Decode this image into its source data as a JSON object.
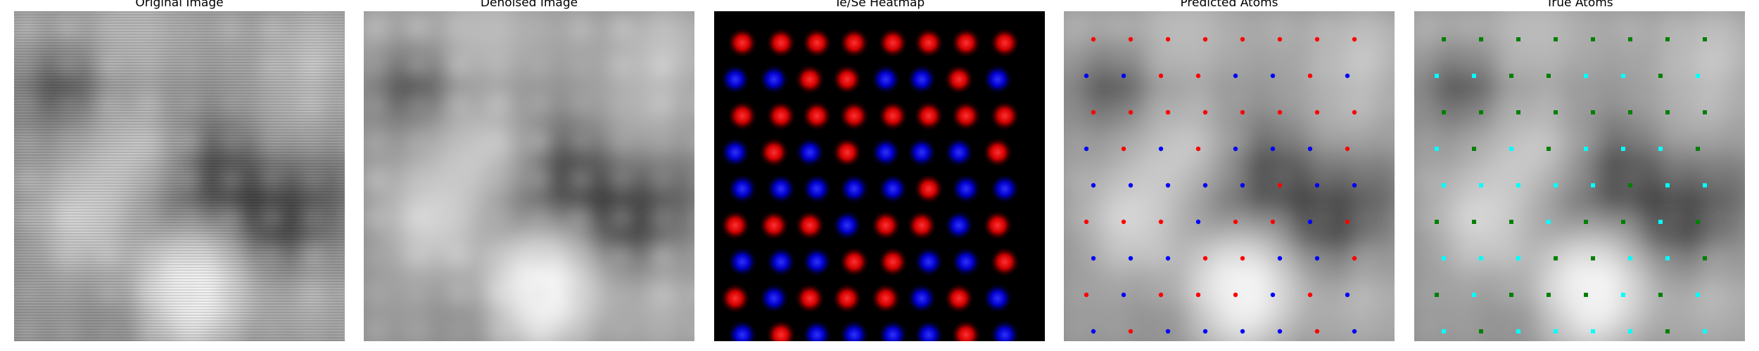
{
  "figure": {
    "panels": [
      {
        "id": "original",
        "title": "Original Image"
      },
      {
        "id": "denoised",
        "title": "Denoised Image"
      },
      {
        "id": "heatmap",
        "title": "Te/Se Heatmap"
      },
      {
        "id": "predicted",
        "title": "Predicted Atoms"
      },
      {
        "id": "true",
        "title": "True Atoms"
      }
    ]
  },
  "colors": {
    "te": "#ff1a1a",
    "se": "#1a1aff",
    "pred_red": "#ff0000",
    "pred_blue": "#0000ff",
    "true_green": "#008000",
    "true_cyan": "#00ffff"
  }
}
